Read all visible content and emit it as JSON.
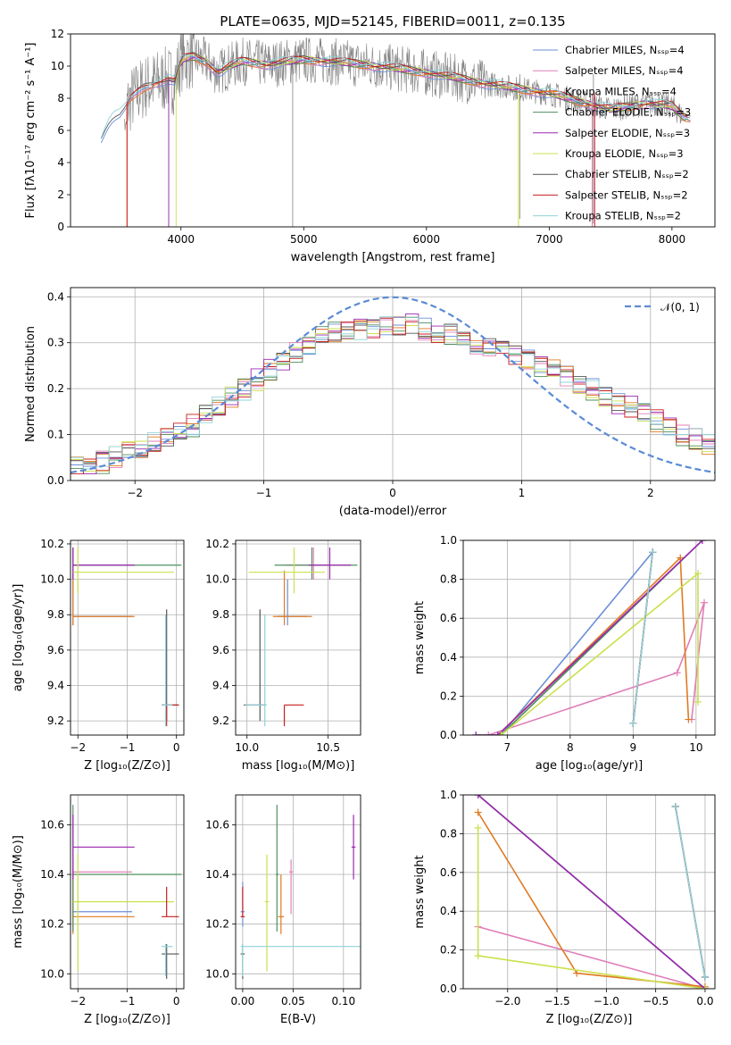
{
  "figure_title": "PLATE=0635, MJD=52145, FIBERID=0011, z=0.135",
  "colors": {
    "chabrier_miles": "#6b8fd6",
    "salpeter_miles": "#e07fb9",
    "kroupa_miles": "#e07a22",
    "chabrier_elodie": "#4f8f5e",
    "salpeter_elodie": "#9b27b0",
    "kroupa_elodie": "#cbe04c",
    "chabrier_stelib": "#555555",
    "salpeter_stelib": "#c81e1e",
    "kroupa_stelib": "#8fd3d8",
    "observed": "#808080",
    "normal": "#5b8bd6"
  },
  "chart_data": [
    {
      "id": "spectrum",
      "type": "line",
      "title": "PLATE=0635, MJD=52145, FIBERID=0011, z=0.135",
      "xlabel": "wavelength [Angstrom, rest frame]",
      "ylabel": "Flux [fλ10⁻¹⁷ erg cm⁻² s⁻¹ A⁻¹]",
      "xlim": [
        3100,
        8350
      ],
      "ylim": [
        0,
        12
      ],
      "xticks": [
        4000,
        5000,
        6000,
        7000,
        8000
      ],
      "yticks": [
        0,
        2,
        4,
        6,
        8,
        10,
        12
      ],
      "legend_position": "top-right",
      "legend": [
        "Chabrier MILES, Nₛₛₚ=4",
        "Salpeter MILES, Nₛₛₚ=4",
        "Kroupa MILES, Nₛₛₚ=4",
        "Chabrier ELODIE, Nₛₛₚ=3",
        "Salpeter ELODIE, Nₛₛₚ=3",
        "Kroupa ELODIE, Nₛₛₚ=3",
        "Chabrier STELIB, Nₛₛₚ=2",
        "Salpeter STELIB, Nₛₛₚ=2",
        "Kroupa STELIB, Nₛₛₚ=2"
      ],
      "model_wave": [
        3350,
        3400,
        3450,
        3500,
        3550,
        3600,
        3700,
        3800,
        3900,
        3950,
        4000,
        4100,
        4200,
        4300,
        4400,
        4500,
        4700,
        5000,
        5200,
        5500,
        5800,
        6000,
        6500,
        7000,
        7500,
        7800,
        8000,
        8100
      ],
      "model_flux": [
        5.5,
        6.4,
        6.9,
        7.0,
        7.4,
        8.0,
        8.7,
        9.0,
        9.2,
        9.0,
        10.4,
        10.6,
        10.3,
        9.6,
        10.0,
        10.3,
        10.1,
        10.4,
        10.3,
        10.1,
        9.8,
        9.6,
        8.9,
        8.3,
        7.3,
        7.7,
        7.5,
        6.8
      ]
    },
    {
      "id": "residuals",
      "type": "step",
      "xlabel": "(data-model)/error",
      "ylabel": "Normed distribution",
      "xlim": [
        -2.5,
        2.5
      ],
      "ylim": [
        0,
        0.42
      ],
      "xticks": [
        -2,
        -1,
        0,
        1,
        2
      ],
      "yticks": [
        0.0,
        0.1,
        0.2,
        0.3,
        0.4
      ],
      "legend_position": "top-right",
      "legend": [
        "𝒩(0, 1)"
      ],
      "bin_width": 0.1,
      "hist_profile": [
        0.03,
        0.035,
        0.04,
        0.05,
        0.06,
        0.07,
        0.08,
        0.09,
        0.105,
        0.12,
        0.14,
        0.16,
        0.18,
        0.2,
        0.22,
        0.24,
        0.26,
        0.28,
        0.3,
        0.31,
        0.32,
        0.33,
        0.33,
        0.335,
        0.34,
        0.34,
        0.34,
        0.33,
        0.325,
        0.32,
        0.31,
        0.3,
        0.29,
        0.28,
        0.27,
        0.26,
        0.25,
        0.24,
        0.23,
        0.21,
        0.2,
        0.185,
        0.17,
        0.16,
        0.145,
        0.13,
        0.115,
        0.1,
        0.09,
        0.08
      ]
    },
    {
      "id": "age_vs_Z",
      "type": "errorbar",
      "xlabel": "Z [log₁₀(Z/Z⊙)]",
      "ylabel": "age  [log₁₀(age/yr)]",
      "xlim": [
        -2.15,
        0.15
      ],
      "ylim": [
        9.12,
        10.22
      ],
      "xticks": [
        -2,
        -1,
        0
      ],
      "yticks": [
        9.2,
        9.4,
        9.6,
        9.8,
        10.0,
        10.2
      ]
    },
    {
      "id": "age_vs_mass",
      "type": "errorbar",
      "xlabel": "mass [log₁₀(M/M⊙)]",
      "xlim": [
        9.93,
        10.7
      ],
      "ylim": [
        9.12,
        10.22
      ],
      "xticks": [
        10.0,
        10.5
      ],
      "yticks": [
        9.2,
        9.4,
        9.6,
        9.8,
        10.0,
        10.2
      ]
    },
    {
      "id": "massweight_vs_age",
      "type": "line",
      "xlabel": "age  [log₁₀(age/yr)]",
      "ylabel": "mass weight",
      "xlim": [
        6.3,
        10.3
      ],
      "ylim": [
        0,
        1
      ],
      "xticks": [
        7,
        8,
        9,
        10
      ],
      "yticks": [
        0.0,
        0.2,
        0.4,
        0.6,
        0.8,
        1.0
      ]
    },
    {
      "id": "mass_vs_Z",
      "type": "errorbar",
      "xlabel": "Z [log₁₀(Z/Z⊙)]",
      "ylabel": "mass [log₁₀(M/M⊙)]",
      "xlim": [
        -2.15,
        0.15
      ],
      "ylim": [
        9.94,
        10.72
      ],
      "xticks": [
        -2,
        -1,
        0
      ],
      "yticks": [
        10.0,
        10.2,
        10.4,
        10.6
      ]
    },
    {
      "id": "mass_vs_ebv",
      "type": "errorbar",
      "xlabel": "E(B-V)",
      "xlim": [
        -0.007,
        0.117
      ],
      "ylim": [
        9.94,
        10.72
      ],
      "xticks": [
        0.0,
        0.05,
        0.1
      ],
      "yticks": [
        10.0,
        10.2,
        10.4,
        10.6
      ]
    },
    {
      "id": "massweight_vs_Z",
      "type": "line",
      "xlabel": "Z [log₁₀(Z/Z⊙)]",
      "ylabel": "mass weight",
      "xlim": [
        -2.45,
        0.1
      ],
      "ylim": [
        0,
        1
      ],
      "xticks": [
        -2.0,
        -1.5,
        -1.0,
        -0.5,
        0.0
      ],
      "yticks": [
        0.0,
        0.2,
        0.4,
        0.6,
        0.8,
        1.0
      ]
    }
  ],
  "models": [
    {
      "key": "chabrier_miles",
      "age": 9.79,
      "age_lo": 9.74,
      "age_hi": 10.0,
      "Z": -2.1,
      "Z_lo": -2.1,
      "Z_hi": -0.9,
      "mass": 10.25,
      "mass_lo": 10.19,
      "mass_hi": 10.37,
      "ebv": 0.0,
      "ebv_lo": -0.002,
      "ebv_hi": 0.002,
      "mw_age": [
        [
          6.9,
          0.0
        ],
        [
          9.31,
          0.94
        ],
        [
          9.0,
          0.06
        ],
        [
          9.31,
          0.94
        ]
      ],
      "mw_Z": [
        [
          -0.3,
          0.94
        ],
        [
          0.0,
          0.06
        ]
      ]
    },
    {
      "key": "salpeter_miles",
      "age": 10.08,
      "age_lo": 10.0,
      "age_hi": 10.18,
      "Z": -2.1,
      "Z_lo": -2.1,
      "Z_hi": -0.9,
      "mass": 10.41,
      "mass_lo": 10.24,
      "mass_hi": 10.46,
      "ebv": 0.048,
      "ebv_lo": 0.046,
      "ebv_hi": 0.05,
      "mw_age": [
        [
          6.7,
          0.0
        ],
        [
          9.7,
          0.32
        ],
        [
          10.13,
          0.68
        ],
        [
          9.93,
          0.08
        ]
      ],
      "mw_Z": [
        [
          -2.3,
          0.32
        ],
        [
          0.0,
          0.0
        ]
      ]
    },
    {
      "key": "kroupa_miles",
      "age": 9.79,
      "age_lo": 9.74,
      "age_hi": 10.05,
      "Z": -2.1,
      "Z_lo": -2.1,
      "Z_hi": -0.85,
      "mass": 10.23,
      "mass_lo": 10.16,
      "mass_hi": 10.4,
      "ebv": 0.038,
      "ebv_lo": 0.035,
      "ebv_hi": 0.041,
      "mw_age": [
        [
          6.85,
          0.0
        ],
        [
          9.75,
          0.91
        ],
        [
          9.88,
          0.08
        ]
      ],
      "mw_Z": [
        [
          -2.3,
          0.91
        ],
        [
          -1.3,
          0.08
        ],
        [
          0.0,
          0.01
        ]
      ]
    },
    {
      "key": "chabrier_elodie",
      "age": 10.08,
      "age_lo": 10.0,
      "age_hi": 10.18,
      "Z": -2.1,
      "Z_lo": -2.1,
      "Z_hi": 0.1,
      "mass": 10.4,
      "mass_lo": 10.17,
      "mass_hi": 10.68,
      "ebv": 0.034,
      "ebv_lo": 0.033,
      "ebv_hi": 0.036,
      "mw_age": [
        [
          6.5,
          0.0
        ],
        [
          6.9,
          0.0
        ],
        [
          10.1,
          1.0
        ]
      ],
      "mw_Z": [
        [
          -2.3,
          1.0
        ],
        [
          0.0,
          0.0
        ]
      ]
    },
    {
      "key": "salpeter_elodie",
      "age": 10.08,
      "age_lo": 10.0,
      "age_hi": 10.18,
      "Z": -2.1,
      "Z_lo": -2.1,
      "Z_hi": -0.85,
      "mass": 10.51,
      "mass_lo": 10.38,
      "mass_hi": 10.64,
      "ebv": 0.11,
      "ebv_lo": 0.108,
      "ebv_hi": 0.112,
      "mw_age": [
        [
          6.5,
          0.0
        ],
        [
          6.85,
          0.0
        ],
        [
          10.1,
          1.0
        ]
      ],
      "mw_Z": [
        [
          -2.3,
          1.0
        ],
        [
          0.0,
          0.0
        ]
      ]
    },
    {
      "key": "kroupa_elodie",
      "age": 10.04,
      "age_lo": 9.92,
      "age_hi": 10.18,
      "Z": -2.0,
      "Z_lo": -2.1,
      "Z_hi": -0.05,
      "mass": 10.29,
      "mass_lo": 10.01,
      "mass_hi": 10.48,
      "ebv": 0.024,
      "ebv_lo": 0.022,
      "ebv_hi": 0.026,
      "mw_age": [
        [
          6.9,
          0.0
        ],
        [
          10.03,
          0.83
        ],
        [
          10.03,
          0.17
        ]
      ],
      "mw_Z": [
        [
          -2.3,
          0.83
        ],
        [
          -2.3,
          0.17
        ],
        [
          0.0,
          0.0
        ]
      ]
    },
    {
      "key": "chabrier_stelib",
      "age": 9.29,
      "age_lo": 9.2,
      "age_hi": 9.83,
      "Z": -0.2,
      "Z_lo": -0.3,
      "Z_hi": 0.05,
      "mass": 10.08,
      "mass_lo": 9.98,
      "mass_hi": 10.12,
      "ebv": 0.0,
      "ebv_lo": -0.002,
      "ebv_hi": 0.002,
      "mw_age": [
        [
          9.0,
          0.06
        ],
        [
          9.31,
          0.94
        ]
      ],
      "mw_Z": [
        [
          -0.3,
          0.94
        ],
        [
          0.0,
          0.06
        ]
      ]
    },
    {
      "key": "salpeter_stelib",
      "age": 9.29,
      "age_lo": 9.17,
      "age_hi": 9.29,
      "Z": -0.2,
      "Z_lo": -0.3,
      "Z_hi": 0.05,
      "mass": 10.23,
      "mass_lo": 10.23,
      "mass_hi": 10.35,
      "ebv": 0.0,
      "ebv_lo": -0.002,
      "ebv_hi": 0.002,
      "mw_age": [
        [
          9.0,
          0.06
        ],
        [
          9.31,
          0.94
        ]
      ],
      "mw_Z": [
        [
          -0.3,
          0.94
        ],
        [
          0.0,
          0.06
        ]
      ]
    },
    {
      "key": "kroupa_stelib",
      "age": 9.29,
      "age_lo": 9.17,
      "age_hi": 9.8,
      "Z": -0.22,
      "Z_lo": -0.3,
      "Z_hi": -0.08,
      "mass": 10.11,
      "mass_lo": 9.99,
      "mass_hi": 10.12,
      "ebv": 0.0,
      "ebv_lo": -0.002,
      "ebv_hi": 0.15,
      "mw_age": [
        [
          9.0,
          0.06
        ],
        [
          9.31,
          0.94
        ]
      ],
      "mw_Z": [
        [
          -0.3,
          0.94
        ],
        [
          0.0,
          0.06
        ]
      ]
    }
  ]
}
